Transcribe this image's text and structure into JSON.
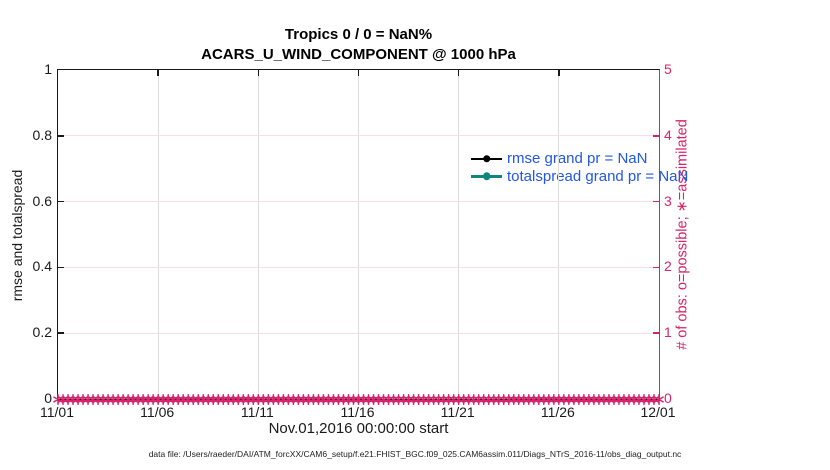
{
  "figure": {
    "footer": "data file: /Users/raeder/DAI/ATM_forcXX/CAM6_setup/f.e21.FHIST_BGC.f09_025.CAM6assim.011/Diags_NTrS_2016-11/obs_diag_output.nc"
  },
  "colors": {
    "crimson": "#d5246b",
    "teal": "#0f867b",
    "blue": "#2257e4",
    "black": "#000000",
    "ink": "#1a1a1a",
    "grid_gray": "#dcdcdc",
    "grid_pink": "#f7dce9"
  },
  "chart_data": {
    "type": "line",
    "title": "Tropics 0 / 0 = NaN%",
    "subtitle": "ACARS_U_WIND_COMPONENT @ 1000 hPa",
    "xlabel": "Nov.01,2016 00:00:00 start",
    "ylabel_left": "rmse and totalspread",
    "ylabel_right": "# of obs: o=possible; ∗=assimilated",
    "x_tick_labels": [
      "11/01",
      "11/06",
      "11/11",
      "11/16",
      "11/21",
      "11/26",
      "12/01"
    ],
    "x_range": "Nov 01 2016 to Dec 01 2016, linear, 5-day tick interval",
    "y_left_tick_labels": [
      "0",
      "0.2",
      "0.4",
      "0.6",
      "0.8",
      "1"
    ],
    "y_right_tick_labels": [
      "0",
      "1",
      "2",
      "3",
      "4",
      "5"
    ],
    "ylim_left": [
      0,
      1
    ],
    "ylim_right": [
      0,
      5
    ],
    "grid": true,
    "legend": {
      "position": "upper-right-inside",
      "entries": [
        {
          "label": "rmse grand pr = NaN",
          "color": "#000000",
          "marker": "filled-circle"
        },
        {
          "label": "totalspread grand pr = NaN",
          "color": "#0f867b",
          "marker": "filled-circle"
        }
      ]
    },
    "series": [
      {
        "name": "rmse",
        "legend_label": "rmse grand pr = NaN",
        "color": "#000000",
        "values": [],
        "note": "all values NaN - no line drawn"
      },
      {
        "name": "totalspread",
        "legend_label": "totalspread grand pr = NaN",
        "color": "#0f867b",
        "values": [],
        "note": "all values NaN - no line drawn"
      }
    ],
    "obs_counts": {
      "axis": "right",
      "color": "#d5246b",
      "marker_possible": "o",
      "marker_assimilated": "∗",
      "possible_constant": 0,
      "assimilated_constant": 0,
      "n_points": 121,
      "cadence_hours": 6,
      "note": "dense band of overlapping ∗ markers at y=0 spanning 11/01 through 12/01"
    }
  }
}
